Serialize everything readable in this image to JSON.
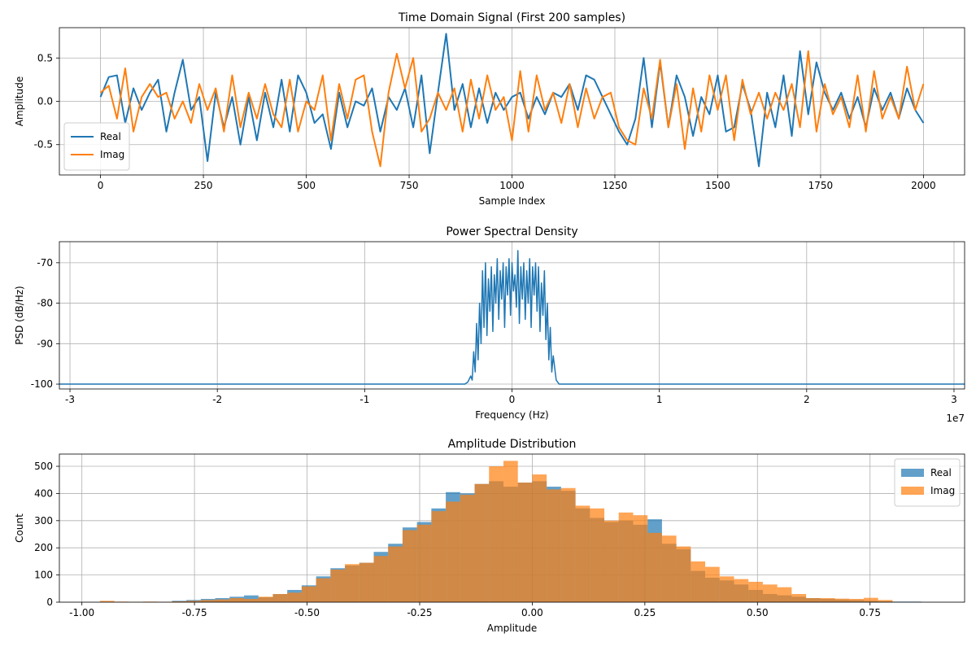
{
  "colors": {
    "real": "#1f77b4",
    "imag": "#ff7f0e",
    "grid": "#b0b0b0",
    "axes": "#000000"
  },
  "chart_data": [
    {
      "type": "line",
      "title": "Time Domain Signal (First 200 samples)",
      "xlabel": "Sample Index",
      "ylabel": "Amplitude",
      "xlim": [
        -100,
        2100
      ],
      "ylim": [
        -0.85,
        0.85
      ],
      "xticks": [
        0,
        250,
        500,
        750,
        1000,
        1250,
        1500,
        1750,
        2000
      ],
      "xtick_labels": [
        "0",
        "250",
        "500",
        "750",
        "1000",
        "1250",
        "1500",
        "1750",
        "2000"
      ],
      "yticks": [
        -0.5,
        0.0,
        0.5
      ],
      "ytick_labels": [
        "-0.5",
        "0.0",
        "0.5"
      ],
      "grid": true,
      "legend": {
        "position": "lower-left",
        "entries": [
          "Real",
          "Imag"
        ]
      },
      "series": [
        {
          "name": "Real",
          "color": "#1f77b4",
          "x": [
            0,
            20,
            40,
            60,
            80,
            100,
            120,
            140,
            160,
            180,
            200,
            220,
            240,
            260,
            280,
            300,
            320,
            340,
            360,
            380,
            400,
            420,
            440,
            460,
            480,
            500,
            520,
            540,
            560,
            580,
            600,
            620,
            640,
            660,
            680,
            700,
            720,
            740,
            760,
            780,
            800,
            820,
            840,
            860,
            880,
            900,
            920,
            940,
            960,
            980,
            1000,
            1020,
            1040,
            1060,
            1080,
            1100,
            1120,
            1140,
            1160,
            1180,
            1200,
            1220,
            1240,
            1260,
            1280,
            1300,
            1320,
            1340,
            1360,
            1380,
            1400,
            1420,
            1440,
            1460,
            1480,
            1500,
            1520,
            1540,
            1560,
            1580,
            1600,
            1620,
            1640,
            1660,
            1680,
            1700,
            1720,
            1740,
            1760,
            1780,
            1800,
            1820,
            1840,
            1860,
            1880,
            1900,
            1920,
            1940,
            1960,
            1980,
            2000
          ],
          "values": [
            0.05,
            0.28,
            0.3,
            -0.25,
            0.15,
            -0.1,
            0.1,
            0.25,
            -0.35,
            0.1,
            0.48,
            -0.1,
            0.05,
            -0.69,
            0.1,
            -0.3,
            0.05,
            -0.5,
            0.05,
            -0.45,
            0.1,
            -0.3,
            0.25,
            -0.35,
            0.3,
            0.1,
            -0.25,
            -0.15,
            -0.55,
            0.1,
            -0.3,
            0.0,
            -0.05,
            0.15,
            -0.35,
            0.05,
            -0.1,
            0.15,
            -0.3,
            0.3,
            -0.6,
            0.1,
            0.78,
            -0.1,
            0.2,
            -0.3,
            0.15,
            -0.25,
            0.1,
            -0.1,
            0.05,
            0.1,
            -0.2,
            0.05,
            -0.15,
            0.1,
            0.05,
            0.2,
            -0.1,
            0.3,
            0.25,
            0.05,
            -0.15,
            -0.35,
            -0.5,
            -0.2,
            0.5,
            -0.3,
            0.45,
            -0.3,
            0.3,
            0.05,
            -0.4,
            0.05,
            -0.15,
            0.3,
            -0.35,
            -0.3,
            0.2,
            -0.1,
            -0.75,
            0.1,
            -0.3,
            0.3,
            -0.4,
            0.58,
            -0.15,
            0.45,
            0.1,
            -0.1,
            0.1,
            -0.2,
            0.05,
            -0.3,
            0.15,
            -0.1,
            0.1,
            -0.2,
            0.15,
            -0.1,
            -0.25
          ]
        },
        {
          "name": "Imag",
          "color": "#ff7f0e",
          "x": [
            0,
            20,
            40,
            60,
            80,
            100,
            120,
            140,
            160,
            180,
            200,
            220,
            240,
            260,
            280,
            300,
            320,
            340,
            360,
            380,
            400,
            420,
            440,
            460,
            480,
            500,
            520,
            540,
            560,
            580,
            600,
            620,
            640,
            660,
            680,
            700,
            720,
            740,
            760,
            780,
            800,
            820,
            840,
            860,
            880,
            900,
            920,
            940,
            960,
            980,
            1000,
            1020,
            1040,
            1060,
            1080,
            1100,
            1120,
            1140,
            1160,
            1180,
            1200,
            1220,
            1240,
            1260,
            1280,
            1300,
            1320,
            1340,
            1360,
            1380,
            1400,
            1420,
            1440,
            1460,
            1480,
            1500,
            1520,
            1540,
            1560,
            1580,
            1600,
            1620,
            1640,
            1660,
            1680,
            1700,
            1720,
            1740,
            1760,
            1780,
            1800,
            1820,
            1840,
            1860,
            1880,
            1900,
            1920,
            1940,
            1960,
            1980,
            2000
          ],
          "values": [
            0.1,
            0.18,
            -0.2,
            0.38,
            -0.35,
            0.05,
            0.2,
            0.05,
            0.1,
            -0.2,
            0.0,
            -0.25,
            0.2,
            -0.1,
            0.15,
            -0.35,
            0.3,
            -0.3,
            0.1,
            -0.2,
            0.2,
            -0.15,
            -0.3,
            0.25,
            -0.35,
            0.0,
            -0.1,
            0.3,
            -0.45,
            0.2,
            -0.2,
            0.25,
            0.3,
            -0.35,
            -0.75,
            0.1,
            0.55,
            0.15,
            0.5,
            -0.35,
            -0.2,
            0.1,
            -0.1,
            0.15,
            -0.35,
            0.25,
            -0.2,
            0.3,
            -0.1,
            0.05,
            -0.45,
            0.35,
            -0.35,
            0.3,
            -0.1,
            0.1,
            -0.25,
            0.2,
            -0.3,
            0.15,
            -0.2,
            0.05,
            0.1,
            -0.3,
            -0.45,
            -0.5,
            0.15,
            -0.2,
            0.48,
            -0.3,
            0.2,
            -0.55,
            0.15,
            -0.35,
            0.3,
            -0.1,
            0.3,
            -0.45,
            0.25,
            -0.15,
            0.1,
            -0.2,
            0.1,
            -0.1,
            0.2,
            -0.3,
            0.58,
            -0.35,
            0.2,
            -0.15,
            0.05,
            -0.3,
            0.3,
            -0.35,
            0.35,
            -0.2,
            0.05,
            -0.2,
            0.4,
            -0.1,
            0.2
          ]
        }
      ]
    },
    {
      "type": "line",
      "title": "Power Spectral Density",
      "xlabel": "Frequency (Hz)",
      "ylabel": "PSD (dB/Hz)",
      "x_offset_label": "1e7",
      "xlim": [
        -30720000,
        30720000
      ],
      "ylim": [
        -101.2,
        -64.8
      ],
      "xticks": [
        -30000000,
        -20000000,
        -10000000,
        0,
        10000000,
        20000000,
        30000000
      ],
      "xtick_labels": [
        "-3",
        "-2",
        "-1",
        "0",
        "1",
        "2",
        "3"
      ],
      "yticks": [
        -100,
        -90,
        -80,
        -70
      ],
      "ytick_labels": [
        "-100",
        "-90",
        "-80",
        "-70"
      ],
      "grid": true,
      "series": [
        {
          "color": "#1f77b4",
          "x": [
            -30720000,
            -3200000,
            -3000000,
            -2800000,
            -2700000,
            -2600000,
            -2500000,
            -2400000,
            -2300000,
            -2200000,
            -2100000,
            -2000000,
            -1900000,
            -1800000,
            -1700000,
            -1600000,
            -1500000,
            -1400000,
            -1300000,
            -1200000,
            -1100000,
            -1000000,
            -900000,
            -800000,
            -700000,
            -600000,
            -500000,
            -400000,
            -300000,
            -200000,
            -100000,
            0,
            100000,
            200000,
            300000,
            400000,
            500000,
            600000,
            700000,
            800000,
            900000,
            1000000,
            1100000,
            1200000,
            1300000,
            1400000,
            1500000,
            1600000,
            1700000,
            1800000,
            1900000,
            2000000,
            2100000,
            2200000,
            2300000,
            2400000,
            2500000,
            2600000,
            2700000,
            2800000,
            3000000,
            3200000,
            30720000
          ],
          "values": [
            -100,
            -100,
            -99.5,
            -98,
            -99,
            -92,
            -97,
            -85,
            -94,
            -80,
            -90,
            -72,
            -86,
            -70,
            -88,
            -74,
            -82,
            -71,
            -87,
            -73,
            -80,
            -69,
            -84,
            -72,
            -79,
            -70,
            -86,
            -71,
            -78,
            -69,
            -83,
            -70,
            -77,
            -73,
            -81,
            -67,
            -85,
            -71,
            -79,
            -70,
            -84,
            -72,
            -80,
            -69,
            -86,
            -71,
            -78,
            -70,
            -82,
            -71,
            -87,
            -75,
            -83,
            -72,
            -89,
            -80,
            -94,
            -86,
            -97,
            -93,
            -99,
            -100,
            -100
          ]
        }
      ]
    },
    {
      "type": "bar",
      "title": "Amplitude Distribution",
      "xlabel": "Amplitude",
      "ylabel": "Count",
      "xlim": [
        -1.05,
        0.96
      ],
      "ylim": [
        0,
        545
      ],
      "xticks": [
        -1.0,
        -0.75,
        -0.5,
        -0.25,
        0.0,
        0.25,
        0.5,
        0.75
      ],
      "xtick_labels": [
        "-1.00",
        "-0.75",
        "-0.50",
        "-0.25",
        "0.00",
        "0.25",
        "0.50",
        "0.75"
      ],
      "yticks": [
        0,
        100,
        200,
        300,
        400,
        500
      ],
      "ytick_labels": [
        "0",
        "100",
        "200",
        "300",
        "400",
        "500"
      ],
      "grid": true,
      "legend": {
        "position": "top-right",
        "entries": [
          "Real",
          "Imag"
        ]
      },
      "series": [
        {
          "name": "Real",
          "color": "#1f77b4",
          "bin_edges": [
            -0.96,
            -0.928,
            -0.896,
            -0.864,
            -0.832,
            -0.8,
            -0.768,
            -0.736,
            -0.704,
            -0.672,
            -0.64,
            -0.608,
            -0.576,
            -0.544,
            -0.512,
            -0.48,
            -0.448,
            -0.416,
            -0.384,
            -0.352,
            -0.32,
            -0.288,
            -0.256,
            -0.224,
            -0.192,
            -0.16,
            -0.128,
            -0.096,
            -0.064,
            -0.032,
            0.0,
            0.032,
            0.064,
            0.096,
            0.128,
            0.16,
            0.192,
            0.224,
            0.256,
            0.288,
            0.32,
            0.352,
            0.384,
            0.416,
            0.448,
            0.48,
            0.512,
            0.544,
            0.576,
            0.608,
            0.64,
            0.672,
            0.704,
            0.736,
            0.768,
            0.8,
            0.832,
            0.864
          ],
          "values": [
            0,
            0,
            0,
            0,
            1,
            5,
            8,
            12,
            15,
            20,
            25,
            18,
            30,
            45,
            62,
            95,
            125,
            135,
            145,
            185,
            215,
            275,
            295,
            345,
            405,
            400,
            435,
            445,
            425,
            440,
            445,
            425,
            410,
            345,
            310,
            295,
            300,
            285,
            305,
            215,
            195,
            115,
            90,
            80,
            65,
            45,
            30,
            25,
            20,
            15,
            12,
            10,
            8,
            5,
            3,
            2,
            2
          ]
        },
        {
          "name": "Imag",
          "color": "#ff7f0e",
          "bin_edges": [
            -0.96,
            -0.928,
            -0.896,
            -0.864,
            -0.832,
            -0.8,
            -0.768,
            -0.736,
            -0.704,
            -0.672,
            -0.64,
            -0.608,
            -0.576,
            -0.544,
            -0.512,
            -0.48,
            -0.448,
            -0.416,
            -0.384,
            -0.352,
            -0.32,
            -0.288,
            -0.256,
            -0.224,
            -0.192,
            -0.16,
            -0.128,
            -0.096,
            -0.064,
            -0.032,
            0.0,
            0.032,
            0.064,
            0.096,
            0.128,
            0.16,
            0.192,
            0.224,
            0.256,
            0.288,
            0.32,
            0.352,
            0.384,
            0.416,
            0.448,
            0.48,
            0.512,
            0.544,
            0.576,
            0.608,
            0.64,
            0.672,
            0.704,
            0.736,
            0.768,
            0.8,
            0.832,
            0.864
          ],
          "values": [
            5,
            2,
            1,
            2,
            1,
            3,
            5,
            8,
            10,
            15,
            12,
            20,
            30,
            35,
            58,
            88,
            120,
            140,
            145,
            170,
            205,
            265,
            285,
            335,
            370,
            395,
            435,
            500,
            520,
            440,
            470,
            415,
            420,
            355,
            345,
            300,
            330,
            320,
            255,
            245,
            205,
            150,
            130,
            95,
            85,
            75,
            65,
            55,
            30,
            15,
            15,
            13,
            12,
            16,
            8,
            0,
            0
          ]
        }
      ]
    }
  ]
}
